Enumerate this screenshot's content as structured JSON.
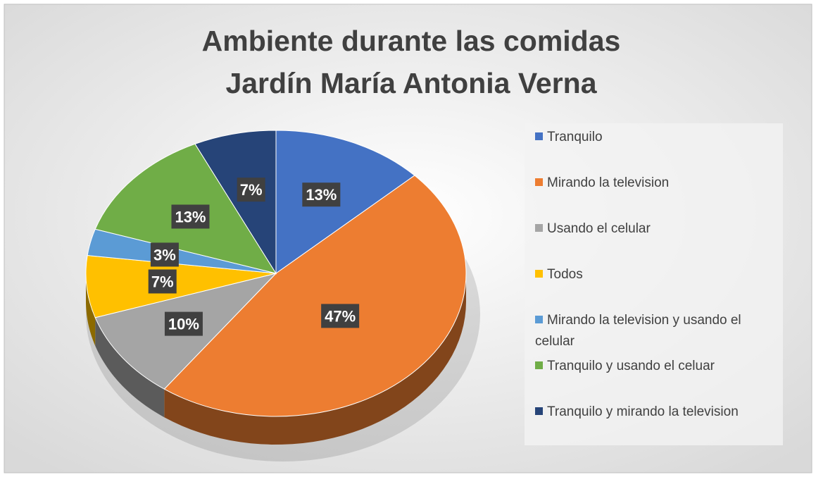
{
  "chart_data": {
    "type": "pie",
    "title": [
      "Ambiente durante las comidas",
      "Jardín María Antonia Verna"
    ],
    "categories": [
      "Tranquilo",
      "Mirando la television",
      "Usando el celular",
      "Todos",
      "Mirando la television y usando el celular",
      "Tranquilo y usando el celuar",
      "Tranquilo y mirando la television"
    ],
    "values": [
      13,
      47,
      10,
      7,
      3,
      13,
      7
    ],
    "value_labels": [
      "13%",
      "47%",
      "10%",
      "7%",
      "3%",
      "13%",
      "7%"
    ],
    "colors": [
      "#4472c4",
      "#ed7d31",
      "#a5a5a5",
      "#ffc000",
      "#5b9bd5",
      "#70ad47",
      "#264478"
    ],
    "legend": "right"
  }
}
